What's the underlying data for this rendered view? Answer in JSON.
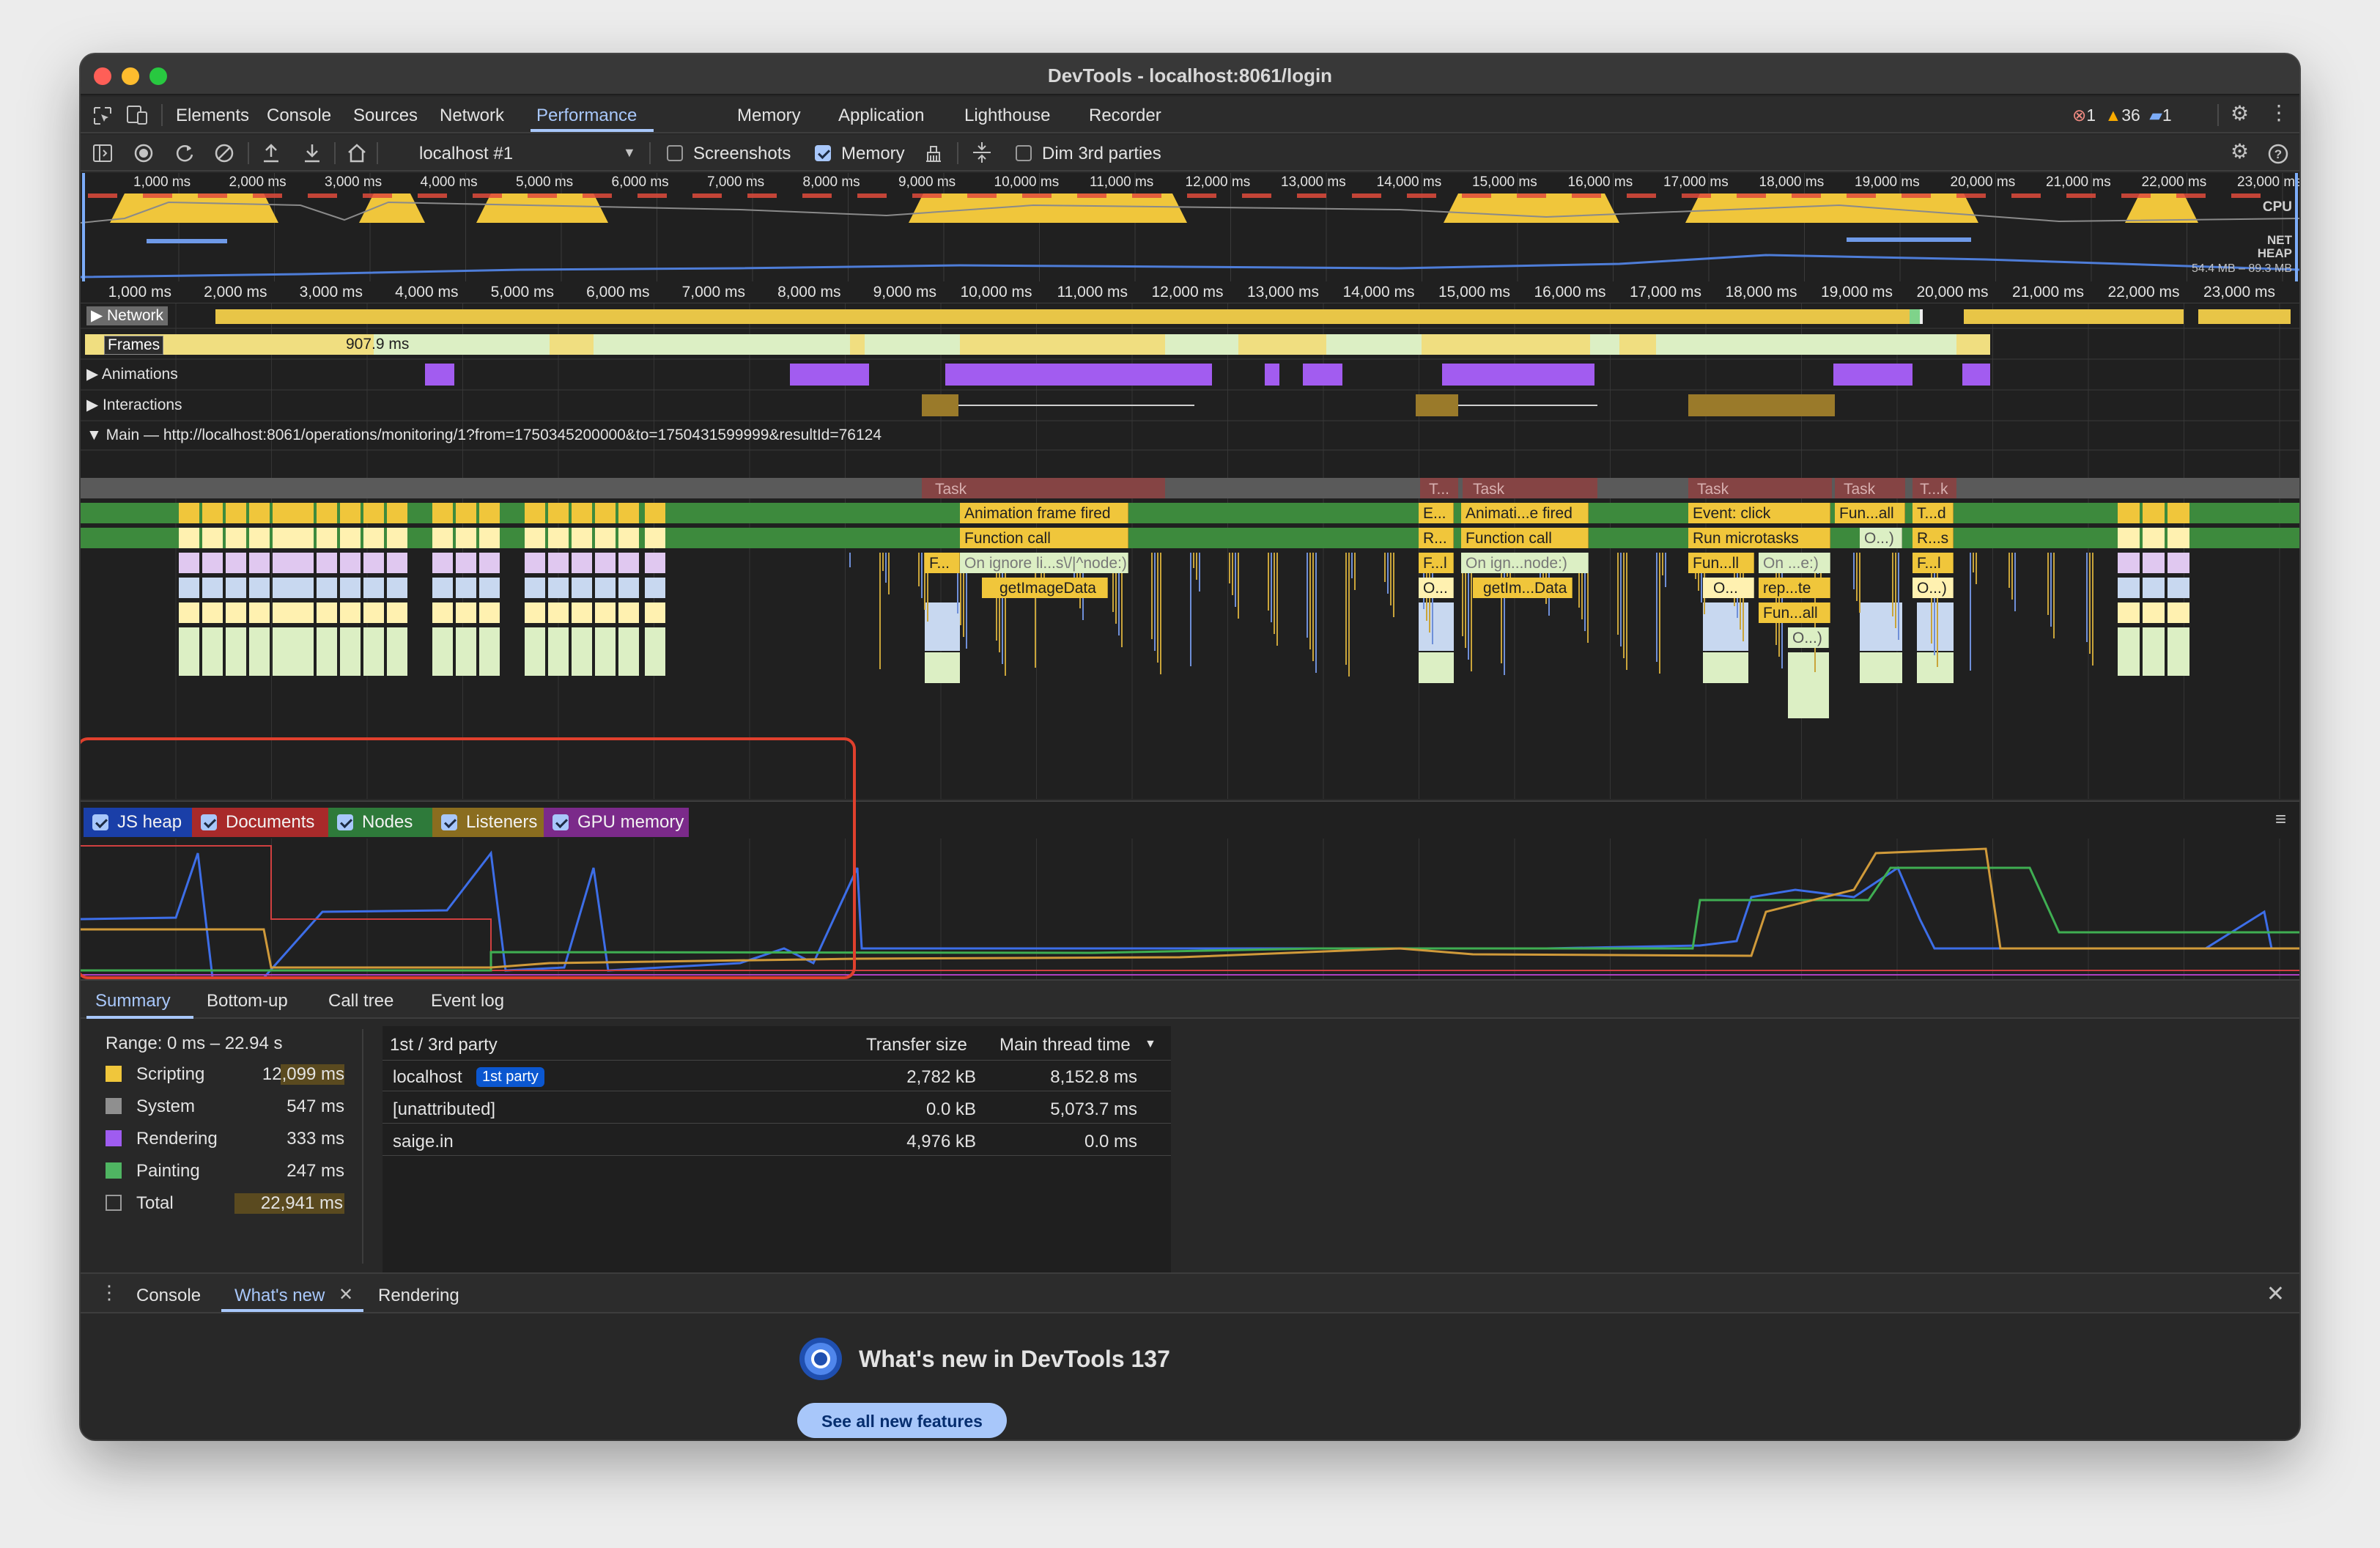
{
  "window": {
    "title": "DevTools - localhost:8061/login"
  },
  "tabs": [
    "Elements",
    "Console",
    "Sources",
    "Network",
    "Performance",
    "Memory",
    "Application",
    "Lighthouse",
    "Recorder"
  ],
  "selected_tab": "Performance",
  "status": {
    "errors": "1",
    "warnings": "36",
    "messages": "1"
  },
  "toolbar": {
    "recording_select": "localhost #1",
    "screenshots_label": "Screenshots",
    "screenshots_checked": false,
    "memory_label": "Memory",
    "memory_checked": true,
    "dim_label": "Dim 3rd parties",
    "dim_checked": false
  },
  "overview": {
    "ticks": [
      "1,000 ms",
      "2,000 ms",
      "3,000 ms",
      "4,000 ms",
      "5,000 ms",
      "6,000 ms",
      "7,000 ms",
      "8,000 ms",
      "9,000 ms",
      "10,000 ms",
      "11,000 ms",
      "12,000 ms",
      "13,000 ms",
      "14,000 ms",
      "15,000 ms",
      "16,000 ms",
      "17,000 ms",
      "18,000 ms",
      "19,000 ms",
      "20,000 ms",
      "21,000 ms",
      "22,000 ms",
      "23,000 ms"
    ],
    "cpu_label": "CPU",
    "net_label": "NET",
    "heap_label": "HEAP",
    "heap_range": "54.4 MB – 89.3 MB"
  },
  "ruler_ticks": [
    "1,000 ms",
    "2,000 ms",
    "3,000 ms",
    "4,000 ms",
    "5,000 ms",
    "6,000 ms",
    "7,000 ms",
    "8,000 ms",
    "9,000 ms",
    "10,000 ms",
    "11,000 ms",
    "12,000 ms",
    "13,000 ms",
    "14,000 ms",
    "15,000 ms",
    "16,000 ms",
    "17,000 ms",
    "18,000 ms",
    "19,000 ms",
    "20,000 ms",
    "21,000 ms",
    "22,000 ms",
    "23,000 ms"
  ],
  "tracks": {
    "network": "Network",
    "frames": "Frames",
    "frame_duration": "907.9 ms",
    "animations": "Animations",
    "interactions": "Interactions",
    "main": "Main — http://localhost:8061/operations/monitoring/1?from=1750345200000&to=1750431599999&resultId=76124"
  },
  "flame": {
    "g1": {
      "task": "Task",
      "l1": "Animation frame fired",
      "l2": "Function call",
      "l3a": "F...",
      "l3b": "On ignore li...s\\/|^node:)",
      "l4": "getImageData"
    },
    "g2": {
      "t1": "T...",
      "t2": "Task",
      "a1": "E...",
      "a2": "Animati...e fired",
      "b1": "R...",
      "b2": "Function call",
      "c1": "F...l",
      "c2": "On ign...node:)",
      "d1": "O...",
      "d2": "getIm...Data"
    },
    "g3": {
      "t1": "Task",
      "t2": "Task",
      "t3": "T...k",
      "a1": "Event: click",
      "a2": "Fun...all",
      "a3": "T...d",
      "b1": "Run microtasks",
      "b2": "O...)",
      "b3": "R...s",
      "c1": "Fun...ll",
      "c2": "On ...e:)",
      "c3": "F...l",
      "d1": "O...",
      "d2": "rep...te",
      "d3": "O...)",
      "e1": "Fun...all",
      "f1": "O...)"
    }
  },
  "counters": [
    {
      "label": "JS heap",
      "color": "#1a3fa8",
      "checked": true
    },
    {
      "label": "Documents",
      "color": "#a82a2a",
      "checked": true
    },
    {
      "label": "Nodes",
      "color": "#2e7a3a",
      "checked": true
    },
    {
      "label": "Listeners",
      "color": "#8a6d1f",
      "checked": true
    },
    {
      "label": "GPU memory",
      "color": "#7b2a8a",
      "checked": true
    }
  ],
  "bottom_tabs": [
    "Summary",
    "Bottom-up",
    "Call tree",
    "Event log"
  ],
  "bottom_selected": "Summary",
  "summary": {
    "range": "Range: 0 ms – 22.94 s",
    "rows": [
      {
        "label": "Scripting",
        "value": "12,099 ms",
        "color": "#f0c63b"
      },
      {
        "label": "System",
        "value": "547 ms",
        "color": "#8f8f8f"
      },
      {
        "label": "Rendering",
        "value": "333 ms",
        "color": "#9f5cf0"
      },
      {
        "label": "Painting",
        "value": "247 ms",
        "color": "#4fb562"
      },
      {
        "label": "Total",
        "value": "22,941 ms",
        "color": ""
      }
    ]
  },
  "party_table": {
    "headers": [
      "1st / 3rd party",
      "Transfer size",
      "Main thread time"
    ],
    "rows": [
      {
        "name": "localhost",
        "badge": "1st party",
        "size": "2,782 kB",
        "time": "8,152.8 ms"
      },
      {
        "name": "[unattributed]",
        "badge": "",
        "size": "0.0 kB",
        "time": "5,073.7 ms"
      },
      {
        "name": "saige.in",
        "badge": "",
        "size": "4,976 kB",
        "time": "0.0 ms"
      }
    ]
  },
  "drawer": {
    "tabs": [
      "Console",
      "What's new",
      "Rendering"
    ],
    "selected": "What's new",
    "heading": "What's new in DevTools 137",
    "button": "See all new features"
  }
}
